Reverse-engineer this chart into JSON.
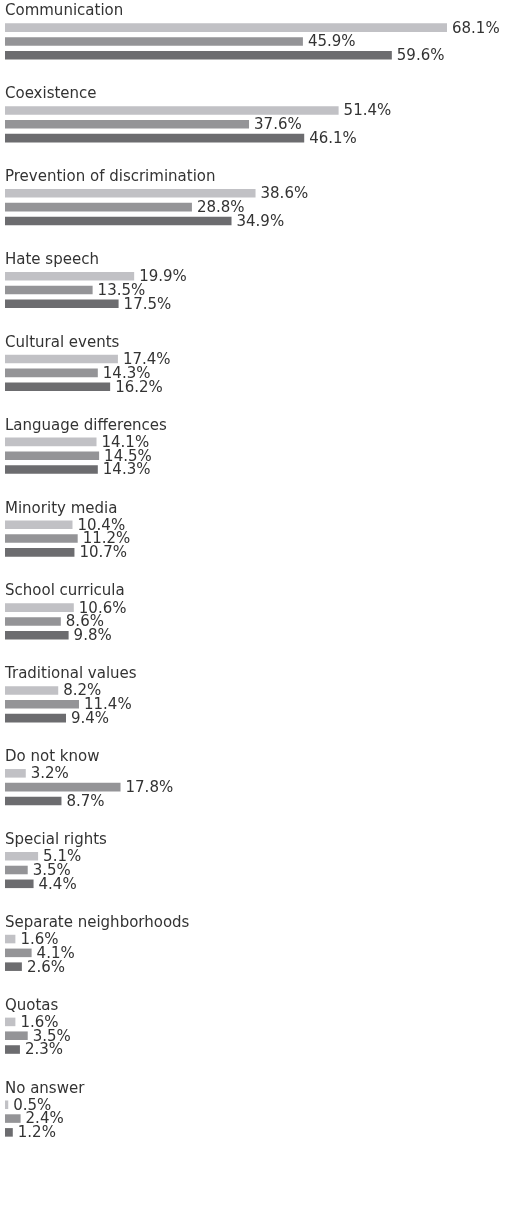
{
  "chart_data": {
    "type": "bar",
    "orientation": "horizontal",
    "legend": false,
    "tick_labels": "y",
    "categories": [
      "Communication",
      "Coexistence",
      "Prevention of discrimination",
      "Hate speech",
      "Cultural events",
      "Language differences",
      "Minority media",
      "School curricula",
      "Traditional values",
      "Do not know",
      "Special rights",
      "Separate neighborhoods",
      "Quotas",
      "No answer"
    ],
    "series": [
      {
        "color": "#c1c1c5",
        "values": [
          68.1,
          51.4,
          38.6,
          19.9,
          17.4,
          14.1,
          10.4,
          10.6,
          8.2,
          3.2,
          5.1,
          1.6,
          1.6,
          0.5
        ],
        "value_labels": [
          "68.1%",
          "51.4%",
          "38.6%",
          "19.9%",
          "17.4%",
          "14.1%",
          "10.4%",
          "10.6%",
          "8.2%",
          "3.2%",
          "5.1%",
          "1.6%",
          "1.6%",
          "0.5%"
        ]
      },
      {
        "color": "#949497",
        "values": [
          45.9,
          37.6,
          28.8,
          13.5,
          14.3,
          14.5,
          11.2,
          8.6,
          11.4,
          17.8,
          3.5,
          4.1,
          3.5,
          2.4
        ],
        "value_labels": [
          "45.9%",
          "37.6%",
          "28.8%",
          "13.5%",
          "14.3%",
          "14.5%",
          "11.2%",
          "8.6%",
          "11.4%",
          "17.8%",
          "3.5%",
          "4.1%",
          "3.5%",
          "2.4%"
        ]
      },
      {
        "color": "#6c6c6f",
        "values": [
          59.6,
          46.1,
          34.9,
          17.5,
          16.2,
          14.3,
          10.7,
          9.8,
          9.4,
          8.7,
          4.4,
          2.6,
          2.3,
          1.2
        ],
        "value_labels": [
          "59.6%",
          "46.1%",
          "34.9%",
          "17.5%",
          "16.2%",
          "14.3%",
          "10.7%",
          "9.8%",
          "9.4%",
          "8.7%",
          "4.4%",
          "2.6%",
          "2.3%",
          "1.2%"
        ]
      }
    ]
  }
}
